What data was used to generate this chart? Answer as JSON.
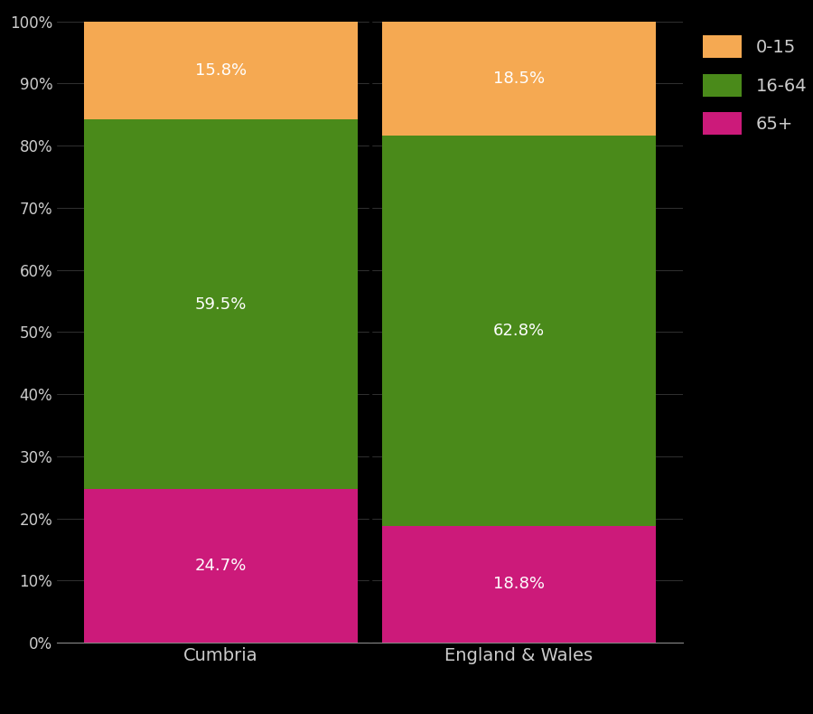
{
  "categories": [
    "Cumbria",
    "England & Wales"
  ],
  "segments": {
    "65+": [
      24.7,
      18.8
    ],
    "16-64": [
      59.5,
      62.8
    ],
    "0-15": [
      15.8,
      18.5
    ]
  },
  "colors": {
    "65+": "#cc1a7a",
    "16-64": "#4a8a1a",
    "0-15": "#f5a952"
  },
  "segment_order": [
    "65+",
    "16-64",
    "0-15"
  ],
  "background_color": "#000000",
  "text_color": "#ffffff",
  "tick_color": "#cccccc",
  "ylim": [
    0,
    100
  ],
  "bar_width": 0.92,
  "legend_labels": [
    "0-15",
    "16-64",
    "65+"
  ],
  "legend_colors": [
    "#f5a952",
    "#4a8a1a",
    "#cc1a7a"
  ],
  "label_fontsize": 13,
  "tick_fontsize": 12,
  "xticklabel_fontsize": 14
}
